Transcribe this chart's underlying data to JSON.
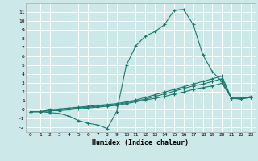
{
  "xlabel": "Humidex (Indice chaleur)",
  "xlim": [
    -0.5,
    23.5
  ],
  "ylim": [
    -2.5,
    12.0
  ],
  "yticks": [
    -2,
    -1,
    0,
    1,
    2,
    3,
    4,
    5,
    6,
    7,
    8,
    9,
    10,
    11
  ],
  "xticks": [
    0,
    1,
    2,
    3,
    4,
    5,
    6,
    7,
    8,
    9,
    10,
    11,
    12,
    13,
    14,
    15,
    16,
    17,
    18,
    19,
    20,
    21,
    22,
    23
  ],
  "bg_color": "#cce8e8",
  "line_color": "#1a7a6e",
  "grid_color": "#ffffff",
  "lines": [
    {
      "x": [
        0,
        1,
        2,
        3,
        4,
        5,
        6,
        7,
        8,
        9,
        10,
        11,
        12,
        13,
        14,
        15,
        16,
        17,
        18,
        19,
        20,
        21,
        22,
        23
      ],
      "y": [
        -0.2,
        -0.2,
        -0.3,
        -0.4,
        -0.7,
        -1.2,
        -1.5,
        -1.7,
        -2.1,
        -0.2,
        5.0,
        7.2,
        8.3,
        8.8,
        9.6,
        11.2,
        11.3,
        9.6,
        6.2,
        4.3,
        3.2,
        1.3,
        1.2,
        1.4
      ]
    },
    {
      "x": [
        0,
        1,
        2,
        3,
        4,
        5,
        6,
        7,
        8,
        9,
        10,
        11,
        12,
        13,
        14,
        15,
        16,
        17,
        18,
        19,
        20,
        21,
        22,
        23
      ],
      "y": [
        -0.2,
        -0.2,
        -0.1,
        -0.1,
        0.0,
        0.1,
        0.2,
        0.3,
        0.4,
        0.5,
        0.7,
        0.9,
        1.1,
        1.3,
        1.5,
        1.8,
        2.0,
        2.3,
        2.5,
        2.7,
        3.0,
        1.3,
        1.3,
        1.4
      ]
    },
    {
      "x": [
        0,
        1,
        2,
        3,
        4,
        5,
        6,
        7,
        8,
        9,
        10,
        11,
        12,
        13,
        14,
        15,
        16,
        17,
        18,
        19,
        20,
        21,
        22,
        23
      ],
      "y": [
        -0.2,
        -0.2,
        -0.1,
        0.0,
        0.1,
        0.2,
        0.3,
        0.4,
        0.5,
        0.6,
        0.8,
        1.0,
        1.2,
        1.5,
        1.8,
        2.1,
        2.4,
        2.7,
        2.9,
        3.2,
        3.5,
        1.3,
        1.3,
        1.4
      ]
    },
    {
      "x": [
        0,
        1,
        2,
        3,
        4,
        5,
        6,
        7,
        8,
        9,
        10,
        11,
        12,
        13,
        14,
        15,
        16,
        17,
        18,
        19,
        20,
        21,
        22,
        23
      ],
      "y": [
        -0.2,
        -0.2,
        0.0,
        0.1,
        0.2,
        0.3,
        0.4,
        0.5,
        0.6,
        0.7,
        0.9,
        1.1,
        1.4,
        1.7,
        2.0,
        2.3,
        2.6,
        2.9,
        3.2,
        3.5,
        3.8,
        1.3,
        1.3,
        1.5
      ]
    }
  ]
}
